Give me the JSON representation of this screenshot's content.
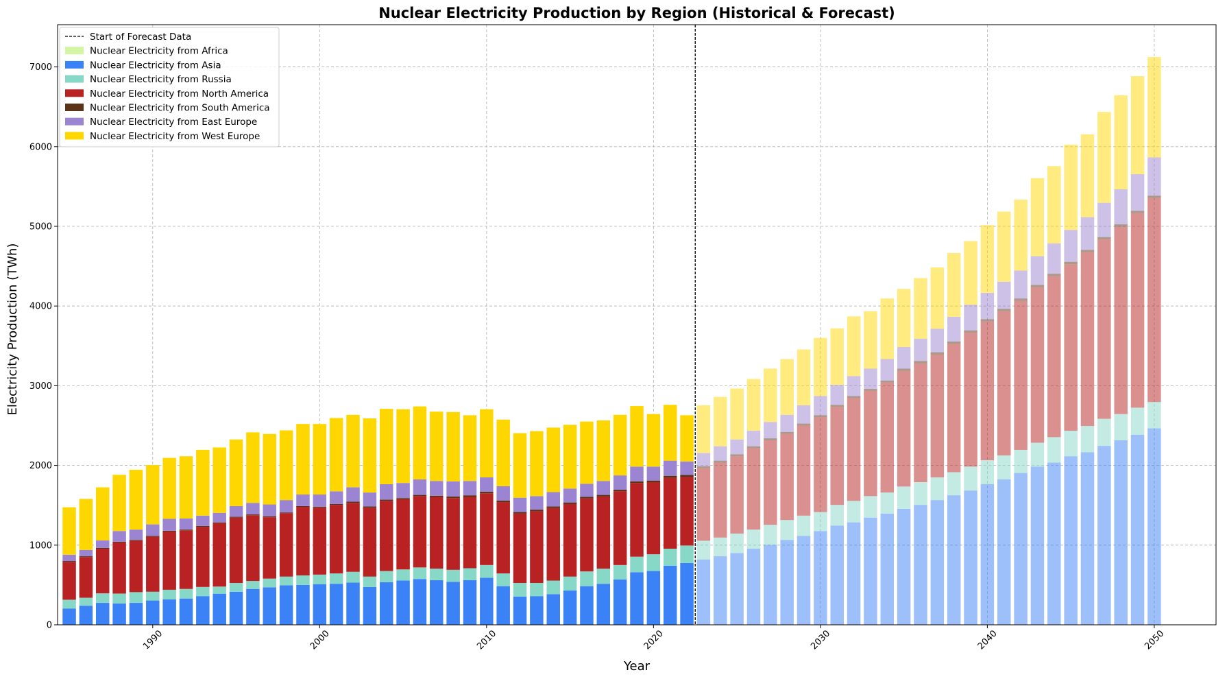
{
  "chart_data": {
    "type": "bar",
    "stacked": true,
    "title": "Nuclear Electricity Production by Region (Historical & Forecast)",
    "xlabel": "Year",
    "ylabel": "Electricity Production (TWh)",
    "xlim": [
      1984.3,
      2053.7
    ],
    "ylim": [
      0,
      7530
    ],
    "grid": true,
    "legend_position": "top-left",
    "x_ticks": [
      1990,
      2000,
      2010,
      2020,
      2030,
      2040,
      2050
    ],
    "y_ticks": [
      0,
      1000,
      2000,
      3000,
      4000,
      5000,
      6000,
      7000
    ],
    "forecast_start": 2022.5,
    "forecast_label": "Start of Forecast Data",
    "historical_years": [
      1985,
      1986,
      1987,
      1988,
      1989,
      1990,
      1991,
      1992,
      1993,
      1994,
      1995,
      1996,
      1997,
      1998,
      1999,
      2000,
      2001,
      2002,
      2003,
      2004,
      2005,
      2006,
      2007,
      2008,
      2009,
      2010,
      2011,
      2012,
      2013,
      2014,
      2015,
      2016,
      2017,
      2018,
      2019,
      2020,
      2021,
      2022
    ],
    "forecast_years": [
      2023,
      2024,
      2025,
      2026,
      2027,
      2028,
      2029,
      2030,
      2031,
      2032,
      2033,
      2034,
      2035,
      2036,
      2037,
      2038,
      2039,
      2040,
      2041,
      2042,
      2043,
      2044,
      2045,
      2046,
      2047,
      2048,
      2049,
      2050
    ],
    "series": [
      {
        "name": "Nuclear Electricity from Africa",
        "color": "#d4f5a3",
        "historical": [
          5,
          5,
          5,
          5,
          5,
          5,
          5,
          5,
          5,
          5,
          5,
          5,
          5,
          5,
          5,
          5,
          5,
          5,
          5,
          5,
          5,
          5,
          5,
          5,
          5,
          5,
          5,
          5,
          5,
          5,
          5,
          5,
          5,
          5,
          5,
          5,
          5,
          5
        ],
        "forecast": [
          5,
          5,
          5,
          5,
          5,
          5,
          5,
          5,
          5,
          5,
          5,
          5,
          5,
          5,
          5,
          5,
          5,
          5,
          5,
          5,
          5,
          5,
          5,
          5,
          5,
          5,
          5,
          5
        ]
      },
      {
        "name": "Nuclear Electricity from Asia",
        "color": "#3b82f6",
        "historical": [
          200,
          235,
          270,
          262,
          270,
          300,
          315,
          325,
          355,
          385,
          410,
          445,
          465,
          490,
          495,
          505,
          510,
          525,
          470,
          530,
          550,
          570,
          555,
          535,
          555,
          585,
          480,
          350,
          355,
          380,
          425,
          480,
          510,
          565,
          655,
          670,
          735,
          770
        ],
        "forecast": [
          815,
          855,
          895,
          950,
          1000,
          1060,
          1110,
          1170,
          1240,
          1280,
          1340,
          1390,
          1450,
          1500,
          1560,
          1620,
          1680,
          1760,
          1820,
          1900,
          1980,
          2030,
          2110,
          2160,
          2240,
          2310,
          2380,
          2460
        ]
      },
      {
        "name": "Nuclear Electricity from Russia",
        "color": "#88d8c8",
        "historical": [
          110,
          100,
          120,
          125,
          135,
          110,
          120,
          120,
          115,
          90,
          110,
          100,
          110,
          110,
          120,
          120,
          130,
          135,
          130,
          140,
          140,
          145,
          145,
          150,
          150,
          160,
          160,
          170,
          165,
          170,
          175,
          185,
          190,
          180,
          195,
          210,
          215,
          220
        ],
        "forecast": [
          235,
          235,
          245,
          240,
          250,
          250,
          255,
          240,
          260,
          270,
          270,
          265,
          280,
          285,
          285,
          290,
          300,
          300,
          300,
          290,
          300,
          320,
          320,
          330,
          340,
          330,
          340,
          330
        ]
      },
      {
        "name": "Nuclear Electricity from North America",
        "color": "#b82222",
        "historical": [
          475,
          510,
          560,
          640,
          645,
          690,
          730,
          735,
          755,
          795,
          820,
          825,
          770,
          795,
          860,
          840,
          860,
          865,
          865,
          880,
          880,
          895,
          900,
          900,
          895,
          900,
          895,
          870,
          900,
          910,
          910,
          915,
          905,
          925,
          925,
          905,
          890,
          860
        ],
        "forecast": [
          910,
          940,
          970,
          1020,
          1060,
          1080,
          1130,
          1190,
          1230,
          1290,
          1320,
          1380,
          1450,
          1490,
          1540,
          1610,
          1680,
          1740,
          1810,
          1870,
          1950,
          2020,
          2090,
          2180,
          2250,
          2350,
          2440,
          2560
        ]
      },
      {
        "name": "Nuclear Electricity from South America",
        "color": "#5c3317",
        "historical": [
          10,
          10,
          10,
          10,
          10,
          10,
          10,
          10,
          10,
          10,
          10,
          10,
          10,
          10,
          10,
          10,
          10,
          15,
          15,
          15,
          15,
          15,
          15,
          20,
          20,
          20,
          20,
          20,
          20,
          20,
          20,
          20,
          20,
          20,
          20,
          20,
          25,
          25
        ],
        "forecast": [
          25,
          25,
          25,
          25,
          25,
          25,
          25,
          25,
          25,
          25,
          25,
          25,
          30,
          30,
          30,
          30,
          30,
          30,
          30,
          30,
          30,
          30,
          30,
          30,
          30,
          30,
          30,
          30
        ]
      },
      {
        "name": "Nuclear Electricity from East Europe",
        "color": "#9b84d1",
        "historical": [
          80,
          80,
          95,
          135,
          130,
          145,
          150,
          140,
          130,
          120,
          135,
          145,
          150,
          155,
          145,
          155,
          160,
          180,
          175,
          195,
          190,
          195,
          185,
          190,
          180,
          180,
          180,
          180,
          170,
          180,
          175,
          165,
          175,
          180,
          185,
          175,
          190,
          170
        ],
        "forecast": [
          165,
          180,
          185,
          195,
          205,
          215,
          230,
          240,
          250,
          250,
          255,
          270,
          270,
          280,
          295,
          310,
          320,
          330,
          340,
          350,
          360,
          380,
          400,
          410,
          430,
          440,
          460,
          480
        ]
      },
      {
        "name": "Nuclear Electricity from West Europe",
        "color": "#ffd700",
        "historical": [
          595,
          640,
          665,
          705,
          750,
          745,
          765,
          780,
          825,
          820,
          835,
          885,
          885,
          875,
          885,
          885,
          920,
          910,
          930,
          945,
          925,
          915,
          870,
          870,
          825,
          855,
          835,
          810,
          815,
          810,
          800,
          780,
          760,
          760,
          760,
          660,
          700,
          580
        ],
        "forecast": [
          600,
          620,
          640,
          650,
          670,
          700,
          700,
          730,
          710,
          750,
          720,
          760,
          730,
          760,
          770,
          800,
          800,
          850,
          880,
          890,
          980,
          970,
          1070,
          1040,
          1140,
          1180,
          1230,
          1260
        ]
      }
    ]
  }
}
